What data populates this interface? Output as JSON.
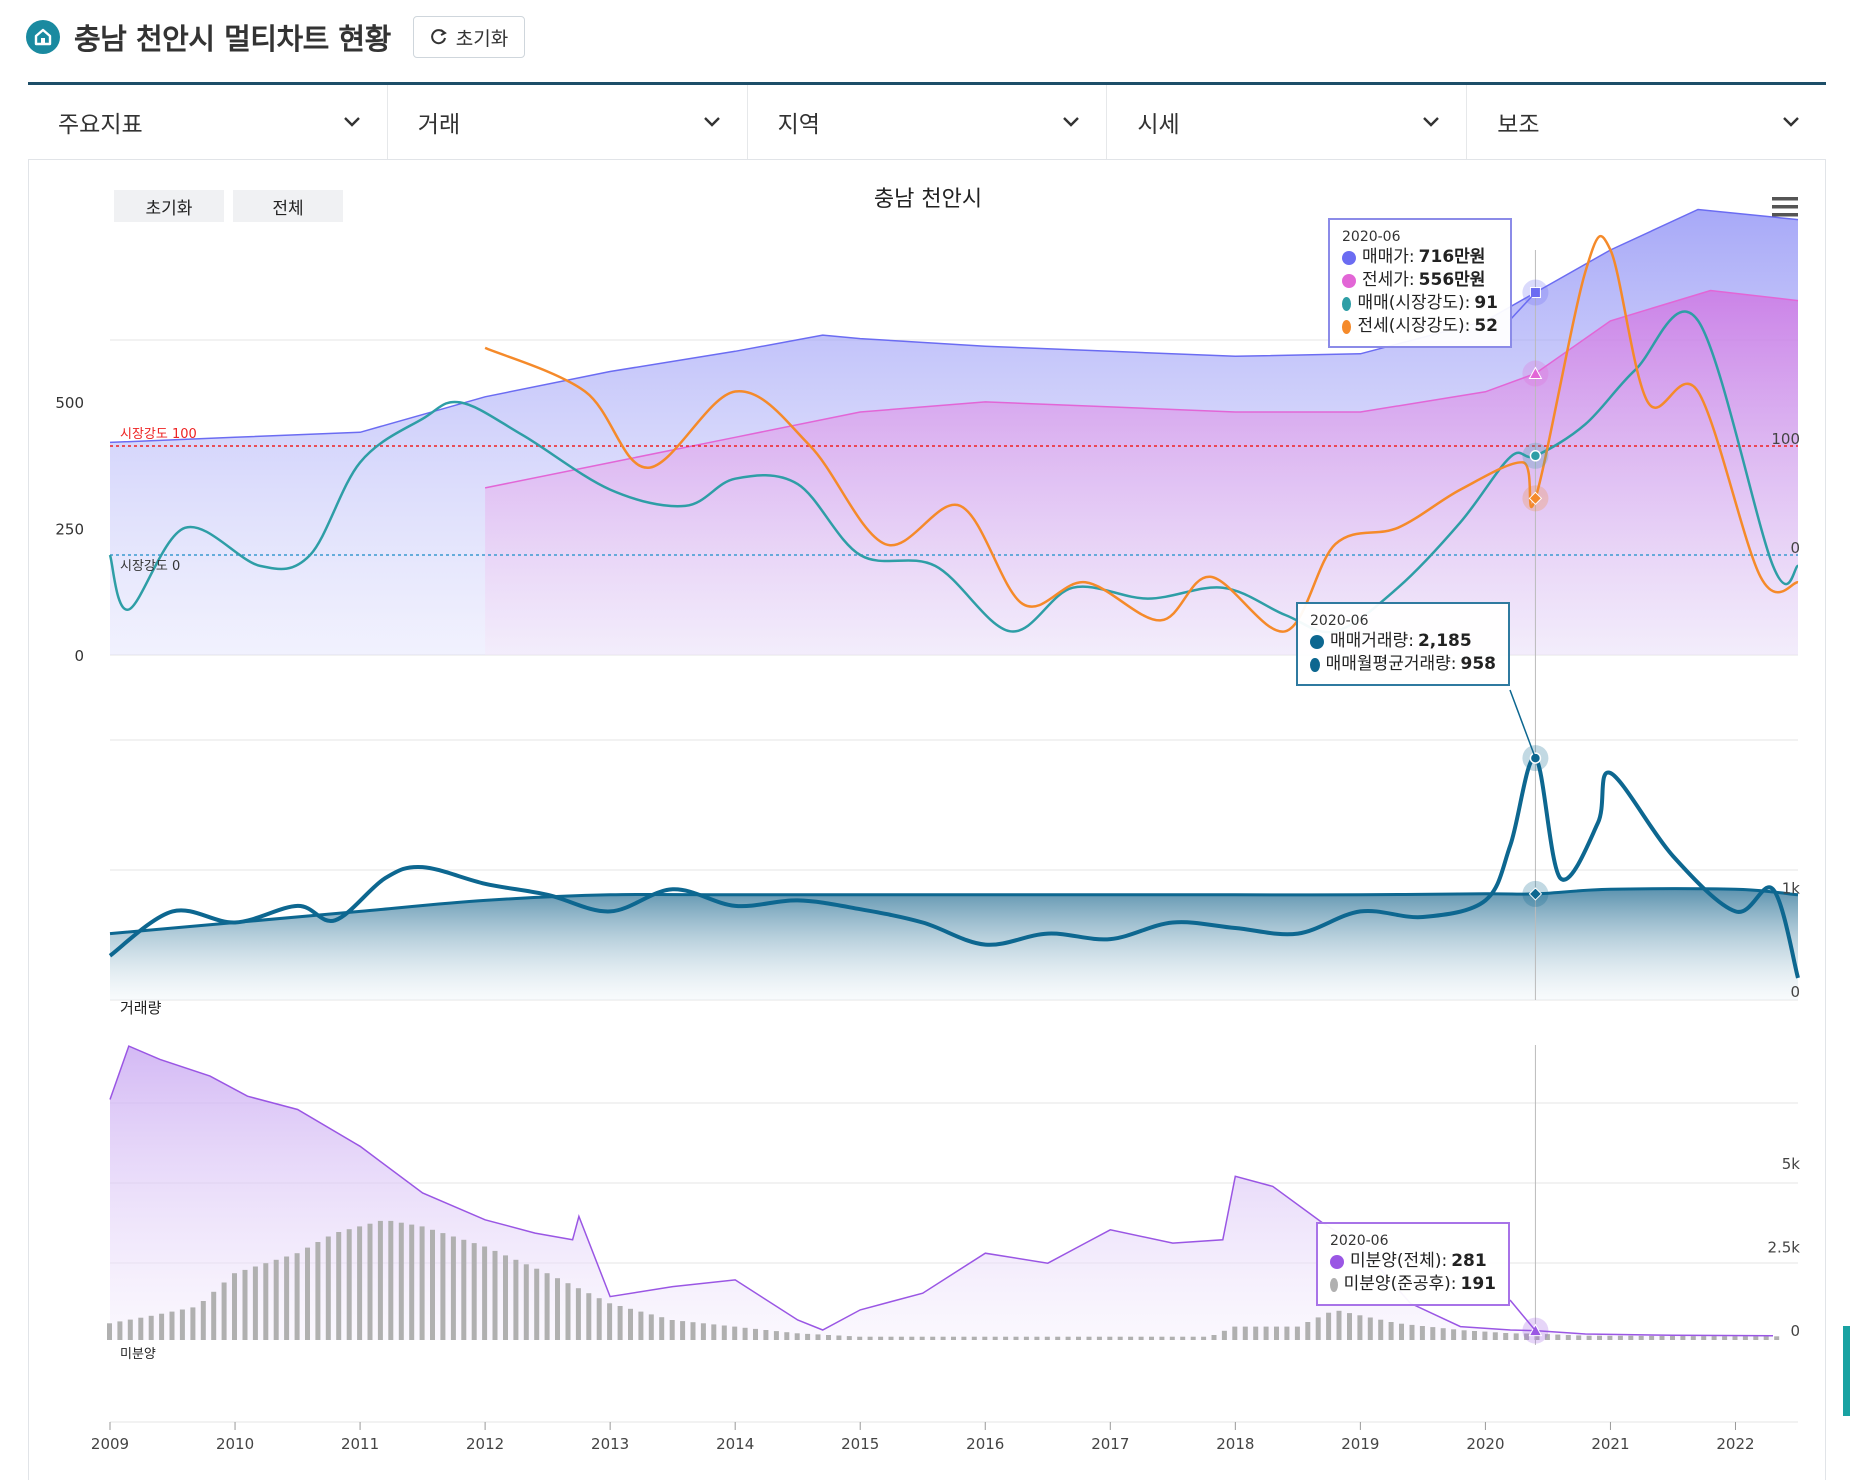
{
  "header": {
    "title": "충남 천안시 멀티차트 현황",
    "reset_label": "초기화"
  },
  "menu": [
    {
      "label": "주요지표"
    },
    {
      "label": "거래"
    },
    {
      "label": "지역"
    },
    {
      "label": "시세"
    },
    {
      "label": "보조"
    }
  ],
  "chart_controls": {
    "reset_label": "초기화",
    "all_label": "전체"
  },
  "icons": [
    "home-icon",
    "refresh-icon",
    "chevron-down-icon",
    "hamburger-menu-icon"
  ],
  "colors": {
    "accent": "#1d4e68",
    "sale_price": "#6b6cf2",
    "jeonse_price": "#e266d6",
    "sale_strength": "#2e9ea6",
    "jeonse_strength": "#f58a2a",
    "volume": "#0d6790",
    "unsold_total": "#9a56e4",
    "unsold_completed": "#b0b0b0"
  },
  "chart_data": [
    {
      "type": "area",
      "title": "충남 천안시",
      "x_ticks": [
        "2009",
        "2010",
        "2011",
        "2012",
        "2013",
        "2014",
        "2015",
        "2016",
        "2017",
        "2018",
        "2019",
        "2020",
        "2021",
        "2022"
      ],
      "y_left_ticks": [
        "0",
        "250",
        "500"
      ],
      "y_right_ticks": [
        "0",
        "100"
      ],
      "reference_lines": [
        {
          "label": "시장강도 100",
          "value": 100
        },
        {
          "label": "시장강도 0",
          "value": 0
        }
      ],
      "series": [
        {
          "name": "매매가",
          "x": [
            2009,
            2010,
            2011,
            2012,
            2013,
            2014,
            2014.7,
            2015,
            2016,
            2017,
            2018,
            2019,
            2020,
            2020.4,
            2021,
            2021.7,
            2022.5
          ],
          "values": [
            420,
            430,
            440,
            510,
            560,
            600,
            632,
            625,
            610,
            600,
            590,
            595,
            660,
            716,
            800,
            880,
            860
          ]
        },
        {
          "name": "전세가",
          "x": [
            2012,
            2013,
            2014,
            2015,
            2016,
            2017,
            2018,
            2019,
            2020,
            2020.4,
            2021,
            2021.8,
            2022.5
          ],
          "values": [
            330,
            380,
            430,
            480,
            500,
            490,
            480,
            480,
            520,
            556,
            660,
            720,
            700
          ]
        },
        {
          "name": "매매(시장강도)",
          "x": [
            2009,
            2009.15,
            2009.6,
            2010.2,
            2010.6,
            2011,
            2011.5,
            2011.8,
            2012.3,
            2013,
            2013.6,
            2014,
            2014.5,
            2015,
            2015.6,
            2016.2,
            2016.7,
            2017.3,
            2017.9,
            2018.4,
            2018.8,
            2019.3,
            2019.8,
            2020.2,
            2020.4,
            2020.8,
            2021.2,
            2021.7,
            2022.3,
            2022.5
          ],
          "values": [
            0,
            -50,
            25,
            -10,
            0,
            85,
            125,
            140,
            110,
            60,
            45,
            70,
            65,
            0,
            -10,
            -70,
            -30,
            -40,
            -30,
            -55,
            -70,
            -30,
            30,
            90,
            91,
            120,
            170,
            215,
            -10,
            -10
          ]
        },
        {
          "name": "전세(시장강도)",
          "x": [
            2012,
            2012.8,
            2013.3,
            2014,
            2014.6,
            2015.2,
            2015.8,
            2016.3,
            2016.8,
            2017.4,
            2017.8,
            2018.4,
            2018.8,
            2019.3,
            2019.8,
            2020.3,
            2020.4,
            2020.8,
            2021,
            2021.3,
            2021.7,
            2022.2,
            2022.5
          ],
          "values": [
            190,
            150,
            80,
            150,
            100,
            10,
            45,
            -45,
            -25,
            -60,
            -20,
            -70,
            10,
            25,
            60,
            85,
            52,
            260,
            280,
            140,
            150,
            -20,
            -25
          ]
        }
      ],
      "tooltip": {
        "date": "2020-06",
        "rows": [
          {
            "name": "매매가",
            "value": "716만원"
          },
          {
            "name": "전세가",
            "value": "556만원"
          },
          {
            "name": "매매(시장강도)",
            "value": "91"
          },
          {
            "name": "전세(시장강도)",
            "value": "52"
          }
        ]
      }
    },
    {
      "type": "area",
      "y_label": "거래량",
      "y_right_ticks": [
        "0",
        "1k"
      ],
      "series": [
        {
          "name": "매매거래량",
          "x": [
            2009,
            2009.5,
            2010,
            2010.5,
            2010.8,
            2011.2,
            2011.5,
            2012,
            2012.5,
            2013,
            2013.5,
            2014,
            2014.5,
            2015,
            2015.5,
            2016,
            2016.5,
            2017,
            2017.5,
            2018,
            2018.5,
            2019,
            2019.5,
            2020,
            2020.2,
            2020.4,
            2020.6,
            2020.9,
            2021,
            2021.5,
            2022,
            2022.3,
            2022.5
          ],
          "values": [
            400,
            800,
            700,
            850,
            720,
            1100,
            1200,
            1050,
            950,
            800,
            1000,
            850,
            900,
            820,
            700,
            500,
            600,
            550,
            700,
            650,
            600,
            800,
            750,
            900,
            1400,
            2185,
            1100,
            1600,
            2050,
            1300,
            800,
            1000,
            200
          ]
        },
        {
          "name": "매매월평균거래량",
          "x": [
            2009,
            2010,
            2011,
            2012,
            2013,
            2014,
            2015,
            2016,
            2017,
            2018,
            2019,
            2020,
            2020.4,
            2021,
            2022,
            2022.5
          ],
          "values": [
            600,
            700,
            800,
            900,
            950,
            950,
            950,
            950,
            950,
            950,
            950,
            960,
            958,
            1000,
            1000,
            950
          ]
        }
      ],
      "tooltip": {
        "date": "2020-06",
        "rows": [
          {
            "name": "매매거래량",
            "value": "2,185"
          },
          {
            "name": "매매월평균거래량",
            "value": "958"
          }
        ]
      }
    },
    {
      "type": "area",
      "y_label": "미분양",
      "y_right_ticks": [
        "0",
        "2.5k",
        "5k"
      ],
      "series": [
        {
          "name": "미분양(전체)",
          "x": [
            2009,
            2009.15,
            2009.4,
            2009.8,
            2010.1,
            2010.5,
            2011,
            2011.5,
            2012,
            2012.4,
            2012.7,
            2012.75,
            2013,
            2013.5,
            2014,
            2014.5,
            2014.7,
            2015,
            2015.5,
            2016,
            2016.5,
            2016.8,
            2017,
            2017.5,
            2017.9,
            2018,
            2018.3,
            2018.7,
            2019,
            2019.4,
            2019.8,
            2020.2,
            2020.4,
            2020.8,
            2021.5,
            2022.3
          ],
          "values": [
            7200,
            8800,
            8400,
            7900,
            7300,
            6900,
            5800,
            4400,
            3600,
            3200,
            3000,
            3700,
            1300,
            1600,
            1800,
            600,
            300,
            900,
            1400,
            2600,
            2300,
            2900,
            3300,
            2900,
            3000,
            4900,
            4600,
            3500,
            2800,
            1100,
            400,
            300,
            281,
            180,
            140,
            130
          ]
        },
        {
          "name": "미분양(준공후)",
          "x": [
            2009,
            2009.3,
            2009.7,
            2010,
            2010.5,
            2010.8,
            2011.2,
            2011.5,
            2012,
            2012.5,
            2013,
            2013.5,
            2014,
            2014.5,
            2015,
            2016,
            2017,
            2017.8,
            2018,
            2018.5,
            2018.8,
            2019.3,
            2019.8,
            2020.2,
            2020.4,
            2020.8,
            2021.5,
            2022.3
          ],
          "values": [
            500,
            700,
            1000,
            2000,
            2600,
            3200,
            3600,
            3400,
            2800,
            2000,
            1100,
            600,
            400,
            200,
            100,
            100,
            100,
            100,
            400,
            400,
            900,
            500,
            300,
            200,
            191,
            130,
            120,
            110
          ]
        }
      ],
      "tooltip": {
        "date": "2020-06",
        "rows": [
          {
            "name": "미분양(전체)",
            "value": "281"
          },
          {
            "name": "미분양(준공후)",
            "value": "191"
          }
        ]
      }
    }
  ]
}
